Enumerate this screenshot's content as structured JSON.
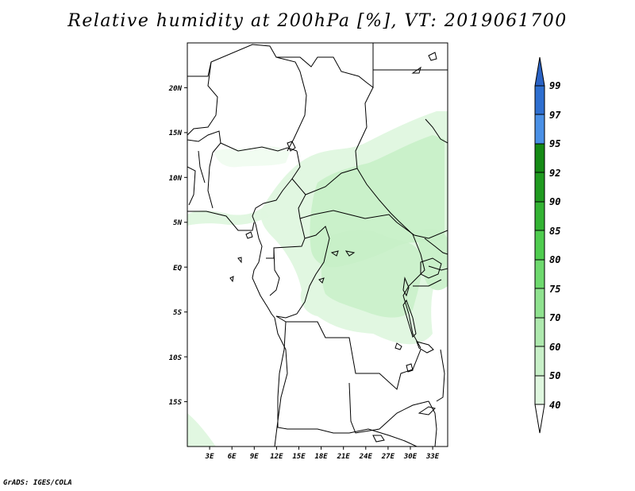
{
  "title": "Relative humidity at 200hPa [%], VT: 2019061700",
  "footer": "GrADS: IGES/COLA",
  "map": {
    "lon_labels": [
      "3E",
      "6E",
      "9E",
      "12E",
      "15E",
      "18E",
      "21E",
      "24E",
      "27E",
      "30E",
      "33E"
    ],
    "lat_labels": [
      "20N",
      "15N",
      "10N",
      "5N",
      "EQ",
      "5S",
      "10S",
      "15S"
    ],
    "lon_range": [
      0,
      35
    ],
    "lat_range": [
      -20,
      25
    ],
    "coastline_color": "#000000",
    "land_color": "#ffffff"
  },
  "colorbar": {
    "labels": [
      "99",
      "97",
      "95",
      "92",
      "90",
      "85",
      "80",
      "75",
      "70",
      "60",
      "50",
      "40"
    ],
    "colors": {
      "c40": "#f0fcf0",
      "c50": "#dff7df",
      "c60": "#c8f0c8",
      "c70": "#aee9ae",
      "c75": "#8fe28f",
      "c80": "#6ed96e",
      "c85": "#4fcc4f",
      "c90": "#33b333",
      "c92": "#1f9a1f",
      "c95": "#158a15",
      "c97": "#4a90e6",
      "c99": "#2e6fd0",
      "top": "#2a62c4"
    }
  }
}
